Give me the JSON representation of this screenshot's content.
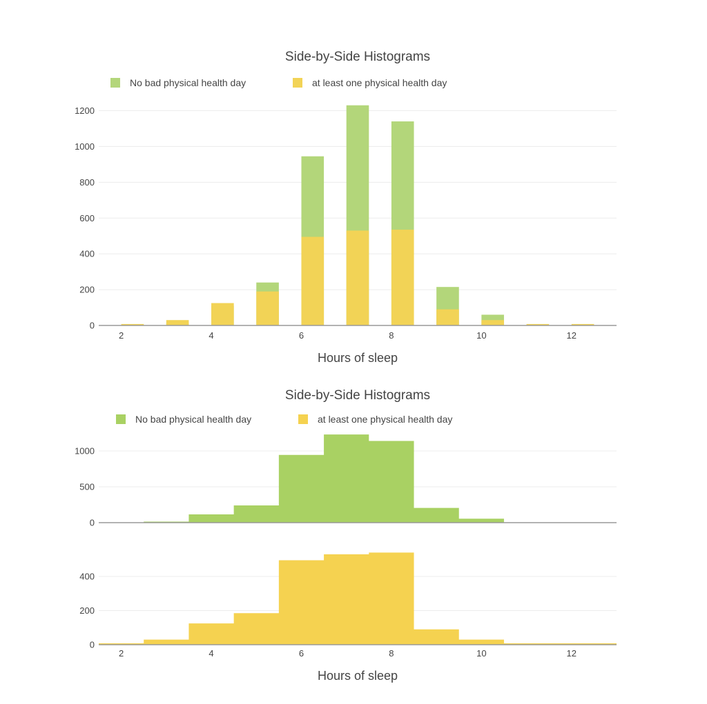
{
  "colors": {
    "green": "#b3d67a",
    "green_solid": "#a9d163",
    "yellow": "#f2d356",
    "yellow_solid": "#f5d250"
  },
  "chart_data": [
    {
      "type": "bar",
      "barmode": "overlay",
      "title": "Side-by-Side Histograms",
      "xlabel": "Hours of sleep",
      "ylabel": "",
      "x_ticks": [
        "2",
        "4",
        "6",
        "8",
        "10",
        "12"
      ],
      "y_ticks": [
        "0",
        "200",
        "400",
        "600",
        "800",
        "1000",
        "1200"
      ],
      "xlim": [
        1.5,
        13
      ],
      "ylim": [
        0,
        1260
      ],
      "grid": true,
      "legend": "top-left",
      "categories": [
        2,
        3,
        4,
        5,
        6,
        7,
        8,
        9,
        10,
        11,
        12
      ],
      "series": [
        {
          "name": "No bad physical health day",
          "color": "#b3d67a",
          "values": [
            5,
            15,
            110,
            240,
            945,
            1230,
            1140,
            215,
            60,
            5,
            3
          ]
        },
        {
          "name": "at least one physical health day",
          "color": "#f2d356",
          "values": [
            8,
            30,
            125,
            190,
            495,
            530,
            535,
            90,
            30,
            8,
            8
          ]
        }
      ]
    },
    {
      "type": "area",
      "subplots": "stacked-vertical",
      "title": "Side-by-Side Histograms",
      "xlabel": "Hours of sleep",
      "x_ticks": [
        "2",
        "4",
        "6",
        "8",
        "10",
        "12"
      ],
      "xlim": [
        1.5,
        13
      ],
      "grid": true,
      "legend": "top-left",
      "bin_edges": [
        1.5,
        2.5,
        3.5,
        4.5,
        5.5,
        6.5,
        7.5,
        8.5,
        9.5,
        10.5,
        11.5,
        12.5,
        13
      ],
      "series": [
        {
          "name": "No bad physical health day",
          "color": "#a9d163",
          "y_ticks": [
            "0",
            "500",
            "1000"
          ],
          "ylim": [
            0,
            1245
          ],
          "values": [
            0,
            15,
            115,
            240,
            945,
            1230,
            1140,
            205,
            55,
            0,
            0,
            0
          ]
        },
        {
          "name": "at least one physical health day",
          "color": "#f5d250",
          "y_ticks": [
            "0",
            "200",
            "400"
          ],
          "ylim": [
            0,
            620
          ],
          "values": [
            8,
            30,
            125,
            185,
            495,
            530,
            540,
            90,
            30,
            8,
            8,
            8
          ]
        }
      ]
    }
  ]
}
